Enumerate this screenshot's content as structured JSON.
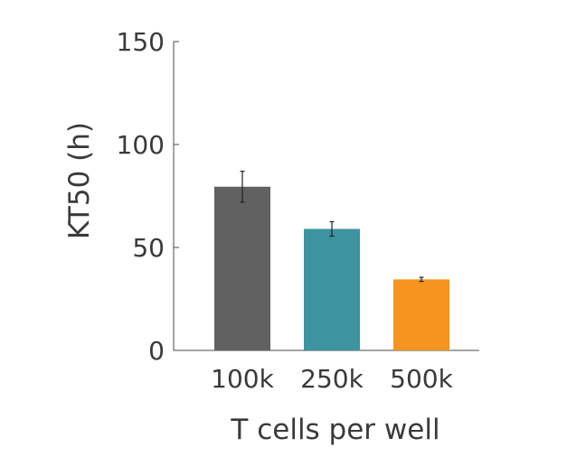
{
  "chart_data": {
    "type": "bar",
    "title": "",
    "xlabel": "T cells per well",
    "ylabel": "KT50 (h)",
    "categories": [
      "100k",
      "250k",
      "500k"
    ],
    "values": [
      79.5,
      59.0,
      34.5
    ],
    "errors": [
      7.5,
      3.5,
      1.0
    ],
    "colors": [
      "#616161",
      "#3d93a0",
      "#f5951f"
    ],
    "ylim": [
      0,
      150
    ],
    "yticks": [
      0,
      50,
      100,
      150
    ],
    "ytick_labels": [
      "0",
      "50",
      "100",
      "150"
    ],
    "grid": false,
    "legend": "none"
  }
}
